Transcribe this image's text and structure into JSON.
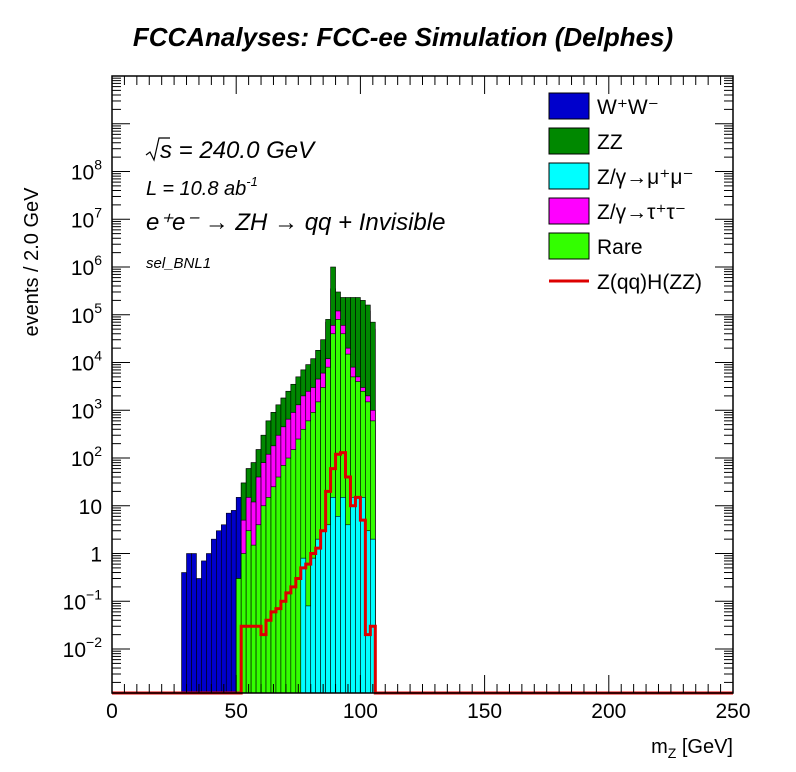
{
  "chart_data": {
    "type": "area",
    "title": "FCCAnalyses: FCC-ee Simulation (Delphes)",
    "xlabel": "m_Z [GeV]",
    "ylabel": "events / 2.0 GeV",
    "xlim": [
      0,
      250
    ],
    "ylim": [
      0.0012,
      10000000000
    ],
    "yscale": "log",
    "stacked": true,
    "bin_width": 2,
    "x_ticks": [
      "0",
      "50",
      "100",
      "150",
      "200",
      "250"
    ],
    "y_ticks": [
      {
        "value": 0.01,
        "base": "10",
        "exp": "−2"
      },
      {
        "value": 0.1,
        "base": "10",
        "exp": "−1"
      },
      {
        "value": 1,
        "base": "1",
        "exp": ""
      },
      {
        "value": 10,
        "base": "10",
        "exp": ""
      },
      {
        "value": 100,
        "base": "10",
        "exp": "2"
      },
      {
        "value": 1000,
        "base": "10",
        "exp": "3"
      },
      {
        "value": 10000,
        "base": "10",
        "exp": "4"
      },
      {
        "value": 100000,
        "base": "10",
        "exp": "5"
      },
      {
        "value": 1000000,
        "base": "10",
        "exp": "6"
      },
      {
        "value": 10000000,
        "base": "10",
        "exp": "7"
      },
      {
        "value": 100000000,
        "base": "10",
        "exp": "8"
      }
    ],
    "annotations": {
      "sqrt_s": "s = 240.0 GeV",
      "lumi_main": "L = 10.8 ab",
      "lumi_exp": "-1",
      "process": "e⁺e⁻ → ZH → qq + Invisible",
      "selection": "sel_BNL1"
    },
    "legend": {
      "position": "top-right",
      "entries": [
        {
          "label": "W⁺W⁻",
          "color": "#0000cc",
          "kind": "fill"
        },
        {
          "label": "ZZ",
          "color": "#008800",
          "kind": "fill"
        },
        {
          "label": "Z/γ→μ⁺μ⁻",
          "color": "#00ffff",
          "kind": "fill"
        },
        {
          "label": "Z/γ→τ⁺τ⁻",
          "color": "#ff00ff",
          "kind": "fill"
        },
        {
          "label": "Rare",
          "color": "#33ff00",
          "kind": "fill"
        },
        {
          "label": "Z(qq)H(ZZ)",
          "color": "#dd0000",
          "kind": "line"
        }
      ]
    },
    "x": [
      29,
      31,
      33,
      35,
      37,
      39,
      41,
      43,
      45,
      47,
      49,
      51,
      53,
      55,
      57,
      59,
      61,
      63,
      65,
      67,
      69,
      71,
      73,
      75,
      77,
      79,
      81,
      83,
      85,
      87,
      89,
      91,
      93,
      95,
      97,
      99,
      101,
      103,
      105,
      107
    ],
    "stack_totals": {
      "Z/γ→μ⁺μ⁻": [
        0,
        0,
        0,
        0,
        0,
        0,
        0,
        0,
        0,
        0,
        0,
        0,
        0,
        0,
        0,
        0,
        0,
        0,
        0,
        0,
        0,
        0,
        0,
        0,
        0.8,
        0.08,
        0.8,
        2,
        3,
        4,
        15,
        6,
        15,
        4,
        15,
        15,
        15,
        3,
        2,
        0
      ],
      "Rare": [
        0,
        0,
        0,
        0,
        0,
        0,
        0,
        0,
        0,
        0,
        0,
        0.3,
        1,
        3,
        1.5,
        4,
        10,
        15,
        25,
        40,
        70,
        100,
        150,
        250,
        400,
        600,
        900,
        1500,
        3000,
        8000,
        40000,
        80000,
        40000,
        15000,
        5000,
        4000,
        2500,
        1500,
        600,
        0
      ],
      "Z/γ→τ⁺τ⁻": [
        0,
        0,
        0,
        0,
        0,
        0,
        0,
        0,
        0,
        0,
        0,
        0.3,
        5,
        15,
        12,
        40,
        80,
        120,
        180,
        300,
        450,
        650,
        900,
        1300,
        2000,
        2500,
        3000,
        4500,
        6000,
        12000,
        60000,
        120000,
        60000,
        20000,
        8000,
        5000,
        3000,
        2000,
        1000,
        0
      ],
      "ZZ": [
        0,
        0,
        0,
        0,
        0,
        0,
        0,
        0,
        0,
        0,
        0,
        0.3,
        30,
        60,
        80,
        150,
        300,
        600,
        900,
        1300,
        1800,
        2500,
        3500,
        5000,
        7000,
        9000,
        12000,
        18000,
        30000,
        80000,
        1000000,
        300000,
        230000,
        230000,
        230000,
        230000,
        200000,
        160000,
        70000,
        0
      ],
      "W⁺W⁻": [
        0.4,
        1,
        1,
        0.3,
        0.7,
        1,
        2,
        3,
        4,
        7,
        8,
        15,
        30,
        60,
        80,
        150,
        300,
        600,
        900,
        1300,
        1800,
        2500,
        3500,
        5000,
        7000,
        9000,
        12000,
        18000,
        30000,
        70000,
        350000,
        200000,
        180000,
        170000,
        160000,
        160000,
        140000,
        120000,
        50000,
        0
      ]
    },
    "signal": {
      "name": "Z(qq)H(ZZ)",
      "values": [
        0,
        0,
        0,
        0,
        0,
        0,
        0,
        0,
        0,
        0,
        0,
        0,
        0.03,
        0.03,
        0.03,
        0.03,
        0.02,
        0.04,
        0.06,
        0.07,
        0.1,
        0.15,
        0.2,
        0.3,
        0.5,
        0.6,
        1,
        1.3,
        3,
        20,
        60,
        120,
        130,
        40,
        10,
        15,
        5,
        0.02,
        0.03,
        0
      ]
    }
  }
}
